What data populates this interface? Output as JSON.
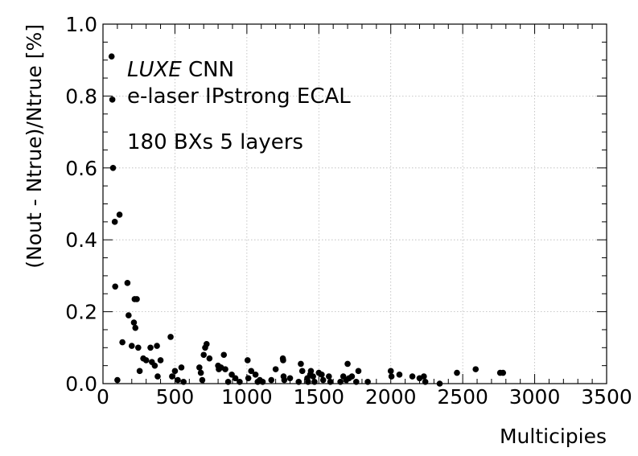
{
  "chart_data": {
    "type": "scatter",
    "xlabel": "Multicipies",
    "ylabel": "(Nout - Ntrue)/Ntrue [%]",
    "xlim": [
      0,
      3500
    ],
    "ylim": [
      0,
      1.0
    ],
    "xticks": [
      "0",
      "500",
      "1000",
      "1500",
      "2000",
      "2500",
      "3000",
      "3500"
    ],
    "yticks": [
      "0.0",
      "0.2",
      "0.4",
      "0.6",
      "0.8",
      "1.0"
    ],
    "grid": true,
    "annotations": {
      "experiment": "LUXE",
      "method": " CNN",
      "setup": "e-laser IPstrong ECAL",
      "config": "180 BXs 5 layers"
    },
    "x": [
      60,
      65,
      70,
      82,
      85,
      100,
      115,
      135,
      170,
      178,
      200,
      215,
      220,
      225,
      235,
      245,
      255,
      280,
      300,
      330,
      340,
      360,
      375,
      380,
      400,
      470,
      480,
      500,
      520,
      545,
      560,
      670,
      680,
      690,
      700,
      710,
      720,
      740,
      800,
      805,
      820,
      840,
      850,
      870,
      895,
      920,
      950,
      1005,
      1010,
      1030,
      1060,
      1075,
      1090,
      1110,
      1170,
      1200,
      1250,
      1252,
      1255,
      1260,
      1300,
      1360,
      1375,
      1385,
      1420,
      1425,
      1440,
      1445,
      1460,
      1470,
      1500,
      1520,
      1530,
      1570,
      1580,
      1650,
      1670,
      1690,
      1700,
      1710,
      1730,
      1760,
      1775,
      1840,
      2000,
      2005,
      2060,
      2150,
      2200,
      2230,
      2240,
      2340,
      2460,
      2590,
      2760,
      2780
    ],
    "y": [
      0.91,
      0.79,
      0.6,
      0.45,
      0.27,
      0.01,
      0.47,
      0.115,
      0.28,
      0.19,
      0.105,
      0.17,
      0.235,
      0.155,
      0.235,
      0.1,
      0.035,
      0.07,
      0.065,
      0.1,
      0.06,
      0.05,
      0.105,
      0.02,
      0.065,
      0.13,
      0.02,
      0.035,
      0.01,
      0.045,
      0.005,
      0.045,
      0.03,
      0.01,
      0.08,
      0.1,
      0.11,
      0.07,
      0.05,
      0.04,
      0.045,
      0.08,
      0.04,
      0.005,
      0.025,
      0.015,
      0.005,
      0.065,
      0.015,
      0.035,
      0.025,
      0.005,
      0.01,
      0.005,
      0.01,
      0.04,
      0.07,
      0.065,
      0.02,
      0.01,
      0.015,
      0.005,
      0.055,
      0.035,
      0.015,
      0.005,
      0.025,
      0.035,
      0.02,
      0.005,
      0.03,
      0.025,
      0.01,
      0.02,
      0.005,
      0.005,
      0.02,
      0.01,
      0.055,
      0.015,
      0.02,
      0.005,
      0.035,
      0.005,
      0.035,
      0.02,
      0.025,
      0.02,
      0.015,
      0.02,
      0.005,
      0.0,
      0.03,
      0.04,
      0.03,
      0.03
    ]
  }
}
